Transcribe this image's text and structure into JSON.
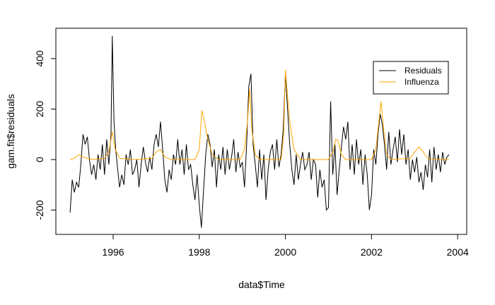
{
  "chart_data": {
    "type": "line",
    "x_label": "data$Time",
    "y_label": "gam.fit$residuals",
    "xlim": [
      1994.67,
      2004.21
    ],
    "ylim": [
      -296.5,
      520.3
    ],
    "xticks": [
      1996,
      1998,
      2000,
      2002,
      2004
    ],
    "yticks": [
      -200,
      0,
      200,
      400
    ],
    "legend_position": "top-right",
    "grid": false,
    "series": [
      {
        "name": "Residuals",
        "color": "#000000",
        "x": [
          1995.0,
          1995.05,
          1995.1,
          1995.15,
          1995.2,
          1995.25,
          1995.3,
          1995.35,
          1995.4,
          1995.45,
          1995.5,
          1995.55,
          1995.6,
          1995.65,
          1995.7,
          1995.75,
          1995.8,
          1995.85,
          1995.9,
          1995.95,
          1995.98,
          1996.02,
          1996.06,
          1996.1,
          1996.15,
          1996.2,
          1996.25,
          1996.3,
          1996.35,
          1996.4,
          1996.45,
          1996.5,
          1996.55,
          1996.6,
          1996.65,
          1996.7,
          1996.75,
          1996.8,
          1996.85,
          1996.9,
          1996.95,
          1997.0,
          1997.05,
          1997.1,
          1997.15,
          1997.2,
          1997.25,
          1997.3,
          1997.35,
          1997.4,
          1997.45,
          1997.5,
          1997.55,
          1997.6,
          1997.65,
          1997.7,
          1997.75,
          1997.8,
          1997.85,
          1997.9,
          1997.95,
          1998.0,
          1998.05,
          1998.1,
          1998.15,
          1998.2,
          1998.25,
          1998.3,
          1998.35,
          1998.4,
          1998.45,
          1998.5,
          1998.55,
          1998.6,
          1998.65,
          1998.7,
          1998.75,
          1998.8,
          1998.85,
          1998.9,
          1998.95,
          1999.0,
          1999.05,
          1999.1,
          1999.15,
          1999.2,
          1999.25,
          1999.3,
          1999.35,
          1999.4,
          1999.45,
          1999.5,
          1999.55,
          1999.6,
          1999.65,
          1999.7,
          1999.75,
          1999.8,
          1999.85,
          1999.9,
          1999.95,
          2000.0,
          2000.05,
          2000.1,
          2000.15,
          2000.2,
          2000.25,
          2000.3,
          2000.35,
          2000.4,
          2000.45,
          2000.5,
          2000.55,
          2000.6,
          2000.65,
          2000.7,
          2000.75,
          2000.8,
          2000.85,
          2000.9,
          2000.95,
          2001.0,
          2001.05,
          2001.1,
          2001.15,
          2001.2,
          2001.25,
          2001.3,
          2001.35,
          2001.4,
          2001.45,
          2001.5,
          2001.55,
          2001.6,
          2001.65,
          2001.7,
          2001.75,
          2001.8,
          2001.85,
          2001.9,
          2001.95,
          2002.0,
          2002.05,
          2002.1,
          2002.15,
          2002.2,
          2002.25,
          2002.3,
          2002.35,
          2002.4,
          2002.45,
          2002.5,
          2002.55,
          2002.6,
          2002.65,
          2002.7,
          2002.75,
          2002.8,
          2002.85,
          2002.9,
          2002.95,
          2003.0,
          2003.05,
          2003.1,
          2003.15,
          2003.2,
          2003.25,
          2003.3,
          2003.35,
          2003.4,
          2003.45,
          2003.5,
          2003.55,
          2003.6,
          2003.65,
          2003.7,
          2003.75,
          2003.8
        ],
        "values": [
          -210,
          -80,
          -130,
          -90,
          -110,
          -20,
          100,
          60,
          90,
          0,
          -60,
          -20,
          -80,
          20,
          -40,
          60,
          -60,
          80,
          -20,
          100,
          490,
          150,
          40,
          -30,
          -110,
          -60,
          -100,
          20,
          -20,
          40,
          -60,
          -40,
          0,
          -110,
          -20,
          50,
          -10,
          -50,
          10,
          -40,
          60,
          100,
          50,
          150,
          40,
          -80,
          -130,
          -40,
          -80,
          20,
          -20,
          80,
          -20,
          40,
          -60,
          60,
          -40,
          -20,
          -100,
          -160,
          -60,
          -180,
          -270,
          -120,
          20,
          100,
          60,
          -30,
          40,
          -110,
          20,
          -40,
          50,
          -60,
          40,
          -40,
          10,
          80,
          -50,
          30,
          -30,
          -10,
          -110,
          60,
          290,
          340,
          60,
          -20,
          -110,
          40,
          -80,
          20,
          -160,
          -40,
          30,
          60,
          -40,
          80,
          -30,
          20,
          120,
          340,
          200,
          60,
          -40,
          -100,
          20,
          -80,
          -20,
          30,
          -40,
          -20,
          30,
          -80,
          0,
          -20,
          -150,
          -40,
          -110,
          -80,
          -200,
          -190,
          230,
          -60,
          60,
          -140,
          -40,
          50,
          130,
          80,
          150,
          -40,
          60,
          -60,
          80,
          -20,
          40,
          -100,
          20,
          -60,
          -200,
          -140,
          40,
          -20,
          100,
          180,
          140,
          60,
          -40,
          110,
          -20,
          40,
          90,
          -10,
          120,
          20,
          100,
          -20,
          40,
          -80,
          0,
          -50,
          10,
          -90,
          -50,
          -120,
          -20,
          -70,
          40,
          -90,
          50,
          -40,
          20,
          -50,
          30,
          -20,
          10,
          20
        ]
      },
      {
        "name": "Influenza",
        "color": "#FFA500",
        "x": [
          1995.0,
          1995.1,
          1995.2,
          1995.3,
          1995.5,
          1995.8,
          1995.9,
          1995.98,
          1996.05,
          1996.15,
          1996.5,
          1996.9,
          1997.0,
          1997.1,
          1997.2,
          1997.35,
          1997.9,
          1998.0,
          1998.06,
          1998.12,
          1998.2,
          1998.3,
          1998.45,
          1998.95,
          1999.05,
          1999.12,
          1999.17,
          1999.22,
          1999.3,
          1999.4,
          1999.9,
          1999.96,
          2000.0,
          2000.05,
          2000.1,
          2000.2,
          2000.35,
          2001.0,
          2001.1,
          2001.17,
          2001.22,
          2001.3,
          2001.4,
          2002.0,
          2002.1,
          2002.17,
          2002.22,
          2002.28,
          2002.35,
          2002.45,
          2002.9,
          2003.0,
          2003.1,
          2003.2,
          2003.3,
          2003.5,
          2003.8
        ],
        "values": [
          0,
          5,
          20,
          10,
          0,
          5,
          30,
          110,
          40,
          5,
          0,
          5,
          30,
          40,
          10,
          0,
          0,
          40,
          195,
          150,
          80,
          20,
          0,
          0,
          40,
          150,
          280,
          120,
          20,
          0,
          0,
          100,
          355,
          250,
          150,
          40,
          0,
          0,
          30,
          80,
          75,
          20,
          0,
          0,
          40,
          150,
          230,
          120,
          20,
          0,
          5,
          30,
          50,
          30,
          5,
          0,
          0
        ]
      }
    ]
  }
}
